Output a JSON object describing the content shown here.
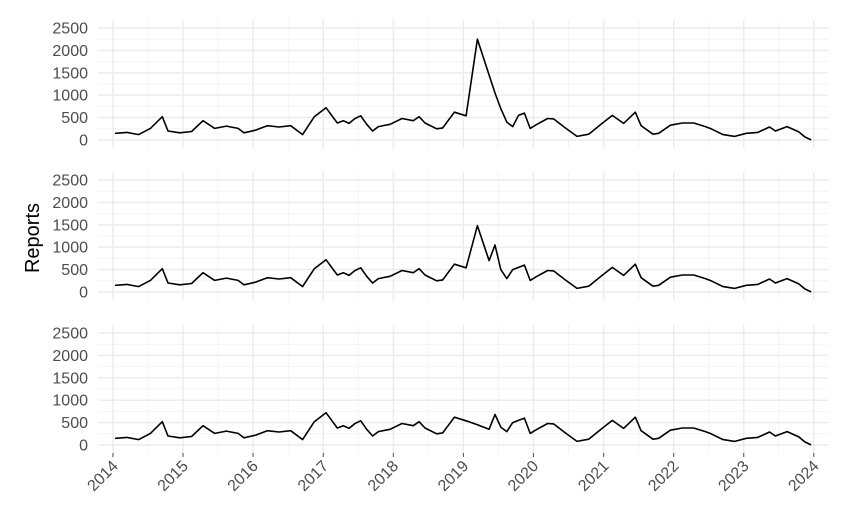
{
  "chart_data": {
    "type": "line",
    "title": "",
    "ylabel": "Reports",
    "xlabel": "",
    "x_ticks": [
      "2014",
      "2015",
      "2016",
      "2017",
      "2018",
      "2019",
      "2020",
      "2021",
      "2022",
      "2023",
      "2024"
    ],
    "y_ticks": [
      "0",
      "500",
      "1000",
      "1500",
      "2000",
      "2500"
    ],
    "ylim": [
      0,
      2500
    ],
    "xlim": [
      "2014-01",
      "2023-12"
    ],
    "grid": true,
    "legend": "none",
    "colors": {
      "line": "#000000",
      "grid_major": "#ebebeb",
      "grid_minor": "#f4f4f4",
      "text": "#4d4d4d"
    },
    "panels": [
      {
        "series": [
          {
            "x": [
              "2014-01",
              "2014-03",
              "2014-05",
              "2014-07",
              "2014-09",
              "2014-10",
              "2014-12",
              "2015-02",
              "2015-04",
              "2015-06",
              "2015-08",
              "2015-10",
              "2015-11",
              "2016-01",
              "2016-03",
              "2016-05",
              "2016-07",
              "2016-09",
              "2016-11",
              "2017-01",
              "2017-03",
              "2017-04",
              "2017-05",
              "2017-06",
              "2017-07",
              "2017-08",
              "2017-09",
              "2017-10",
              "2017-12",
              "2018-02",
              "2018-04",
              "2018-05",
              "2018-06",
              "2018-08",
              "2018-09",
              "2018-11",
              "2019-01",
              "2019-03",
              "2019-05",
              "2019-06",
              "2019-07",
              "2019-08",
              "2019-09",
              "2019-10",
              "2019-11",
              "2019-12",
              "2020-01",
              "2020-03",
              "2020-04",
              "2020-06",
              "2020-08",
              "2020-10",
              "2020-12",
              "2021-02",
              "2021-04",
              "2021-06",
              "2021-07",
              "2021-09",
              "2021-10",
              "2021-12",
              "2022-02",
              "2022-04",
              "2022-06",
              "2022-07",
              "2022-09",
              "2022-11",
              "2023-01",
              "2023-03",
              "2023-05",
              "2023-06",
              "2023-08",
              "2023-10",
              "2023-11",
              "2023-12"
            ],
            "y": [
              150,
              170,
              120,
              260,
              520,
              200,
              160,
              190,
              430,
              260,
              310,
              260,
              160,
              220,
              320,
              290,
              320,
              120,
              520,
              720,
              380,
              430,
              370,
              480,
              540,
              350,
              200,
              300,
              350,
              480,
              430,
              520,
              380,
              250,
              270,
              620,
              540,
              2250,
              1450,
              1050,
              700,
              400,
              300,
              550,
              600,
              260,
              340,
              480,
              470,
              270,
              80,
              130,
              340,
              550,
              370,
              620,
              320,
              130,
              150,
              330,
              380,
              380,
              300,
              250,
              120,
              80,
              150,
              170,
              290,
              200,
              300,
              180,
              70,
              10
            ]
          }
        ]
      },
      {
        "series": [
          {
            "x": [
              "2014-01",
              "2014-03",
              "2014-05",
              "2014-07",
              "2014-09",
              "2014-10",
              "2014-12",
              "2015-02",
              "2015-04",
              "2015-06",
              "2015-08",
              "2015-10",
              "2015-11",
              "2016-01",
              "2016-03",
              "2016-05",
              "2016-07",
              "2016-09",
              "2016-11",
              "2017-01",
              "2017-03",
              "2017-04",
              "2017-05",
              "2017-06",
              "2017-07",
              "2017-08",
              "2017-09",
              "2017-10",
              "2017-12",
              "2018-02",
              "2018-04",
              "2018-05",
              "2018-06",
              "2018-08",
              "2018-09",
              "2018-11",
              "2019-01",
              "2019-03",
              "2019-05",
              "2019-06",
              "2019-07",
              "2019-08",
              "2019-09",
              "2019-10",
              "2019-11",
              "2019-12",
              "2020-01",
              "2020-03",
              "2020-04",
              "2020-06",
              "2020-08",
              "2020-10",
              "2020-12",
              "2021-02",
              "2021-04",
              "2021-06",
              "2021-07",
              "2021-09",
              "2021-10",
              "2021-12",
              "2022-02",
              "2022-04",
              "2022-06",
              "2022-07",
              "2022-09",
              "2022-11",
              "2023-01",
              "2023-03",
              "2023-05",
              "2023-06",
              "2023-08",
              "2023-10",
              "2023-11",
              "2023-12"
            ],
            "y": [
              150,
              170,
              120,
              260,
              520,
              200,
              160,
              190,
              430,
              260,
              310,
              260,
              160,
              220,
              320,
              290,
              320,
              120,
              520,
              720,
              380,
              430,
              370,
              480,
              540,
              350,
              200,
              300,
              350,
              480,
              430,
              520,
              380,
              250,
              270,
              620,
              540,
              1480,
              700,
              1050,
              500,
              300,
              500,
              550,
              600,
              260,
              340,
              480,
              470,
              270,
              80,
              130,
              340,
              550,
              370,
              620,
              320,
              130,
              150,
              330,
              380,
              380,
              300,
              250,
              120,
              80,
              150,
              170,
              290,
              200,
              300,
              180,
              70,
              10
            ]
          }
        ]
      },
      {
        "series": [
          {
            "x": [
              "2014-01",
              "2014-03",
              "2014-05",
              "2014-07",
              "2014-09",
              "2014-10",
              "2014-12",
              "2015-02",
              "2015-04",
              "2015-06",
              "2015-08",
              "2015-10",
              "2015-11",
              "2016-01",
              "2016-03",
              "2016-05",
              "2016-07",
              "2016-09",
              "2016-11",
              "2017-01",
              "2017-03",
              "2017-04",
              "2017-05",
              "2017-06",
              "2017-07",
              "2017-08",
              "2017-09",
              "2017-10",
              "2017-12",
              "2018-02",
              "2018-04",
              "2018-05",
              "2018-06",
              "2018-08",
              "2018-09",
              "2018-11",
              "2019-01",
              "2019-03",
              "2019-05",
              "2019-06",
              "2019-07",
              "2019-08",
              "2019-09",
              "2019-10",
              "2019-11",
              "2019-12",
              "2020-01",
              "2020-03",
              "2020-04",
              "2020-06",
              "2020-08",
              "2020-10",
              "2020-12",
              "2021-02",
              "2021-04",
              "2021-06",
              "2021-07",
              "2021-09",
              "2021-10",
              "2021-12",
              "2022-02",
              "2022-04",
              "2022-06",
              "2022-07",
              "2022-09",
              "2022-11",
              "2023-01",
              "2023-03",
              "2023-05",
              "2023-06",
              "2023-08",
              "2023-10",
              "2023-11",
              "2023-12"
            ],
            "y": [
              150,
              170,
              120,
              260,
              520,
              200,
              160,
              190,
              430,
              260,
              310,
              260,
              160,
              220,
              320,
              290,
              320,
              120,
              520,
              720,
              380,
              430,
              370,
              480,
              540,
              350,
              200,
              300,
              350,
              480,
              430,
              520,
              380,
              250,
              270,
              620,
              540,
              450,
              350,
              680,
              400,
              300,
              500,
              550,
              600,
              260,
              340,
              480,
              470,
              270,
              80,
              130,
              340,
              550,
              370,
              620,
              320,
              130,
              150,
              330,
              380,
              380,
              300,
              250,
              120,
              80,
              150,
              170,
              290,
              200,
              300,
              180,
              70,
              10
            ]
          }
        ]
      }
    ]
  }
}
